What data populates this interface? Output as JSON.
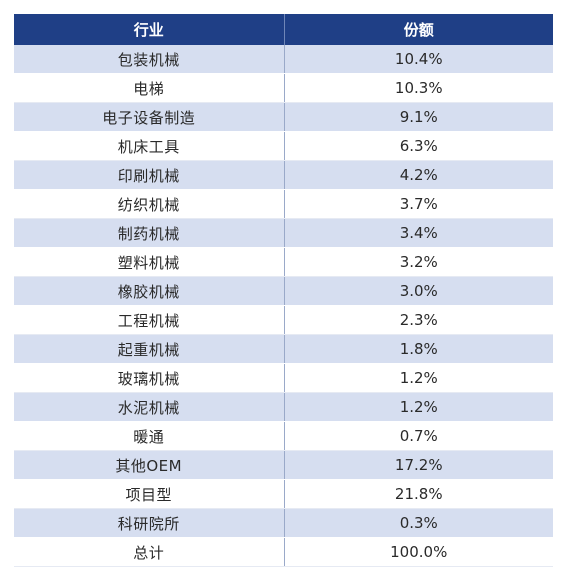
{
  "chart_data": {
    "type": "table",
    "columns": [
      "行业",
      "份额"
    ],
    "rows": [
      [
        "包装机械",
        "10.4%"
      ],
      [
        "电梯",
        "10.3%"
      ],
      [
        "电子设备制造",
        "9.1%"
      ],
      [
        "机床工具",
        "6.3%"
      ],
      [
        "印刷机械",
        "4.2%"
      ],
      [
        "纺织机械",
        "3.7%"
      ],
      [
        "制药机械",
        "3.4%"
      ],
      [
        "塑料机械",
        "3.2%"
      ],
      [
        "橡胶机械",
        "3.0%"
      ],
      [
        "工程机械",
        "2.3%"
      ],
      [
        "起重机械",
        "1.8%"
      ],
      [
        "玻璃机械",
        "1.2%"
      ],
      [
        "水泥机械",
        "1.2%"
      ],
      [
        "暖通",
        "0.7%"
      ],
      [
        "其他OEM",
        "17.2%"
      ],
      [
        "项目型",
        "21.8%"
      ],
      [
        "科研院所",
        "0.3%"
      ],
      [
        "总计",
        "100.0%"
      ]
    ],
    "colors": {
      "header_bg": "#1f3f86",
      "stripe": "#d6def0"
    }
  }
}
